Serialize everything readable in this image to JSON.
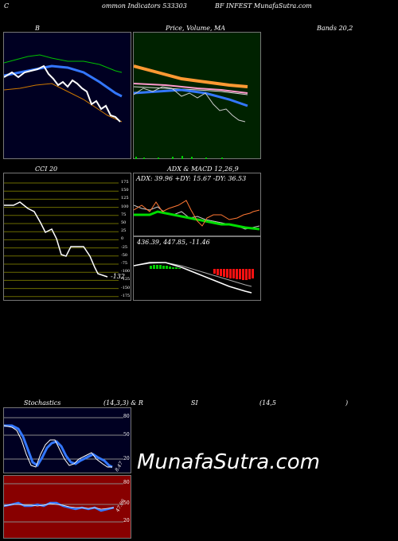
{
  "header": {
    "left_c": "C",
    "title_mid": "ommon  Indicators 533303",
    "title_right": "BF INFEST MunafaSutra.com"
  },
  "top_labels": {
    "bands_left": "B",
    "price_label": "Price,  Volume,  MA",
    "price_overlay": "Volume",
    "bands_right": "Bands 20,2"
  },
  "cci": {
    "title": "CCI 20",
    "value": "-132",
    "ticks": [
      "175",
      "150",
      "125",
      "100",
      "75",
      "50",
      "25",
      "0",
      "-25",
      "-50",
      "-75",
      "-100",
      "-125",
      "-150",
      "-175"
    ]
  },
  "adx": {
    "title": "ADX  & MACD 12,26,9",
    "text": "ADX: 39.96  +DY: 15.67 -DY: 36.53"
  },
  "macd": {
    "text": "436.39,  447.85,  -11.46"
  },
  "stoch": {
    "title_a": "Stochastics",
    "title_b": "(14,3,3) & R",
    "title_c": "SI",
    "title_d": "(14,5",
    "title_e": ")",
    "ticks": [
      "80",
      "50",
      "20"
    ],
    "value": "8.47"
  },
  "rsi": {
    "ticks": [
      "80",
      "50",
      "20"
    ],
    "value": "47.96"
  },
  "watermark": "MunafaSutra.com",
  "colors": {
    "bands_bg": "#000022",
    "price_bg": "#002200",
    "cci_bg": "#000000",
    "cci_grid": "#6b6b00",
    "rsi_bg": "#880000"
  }
}
